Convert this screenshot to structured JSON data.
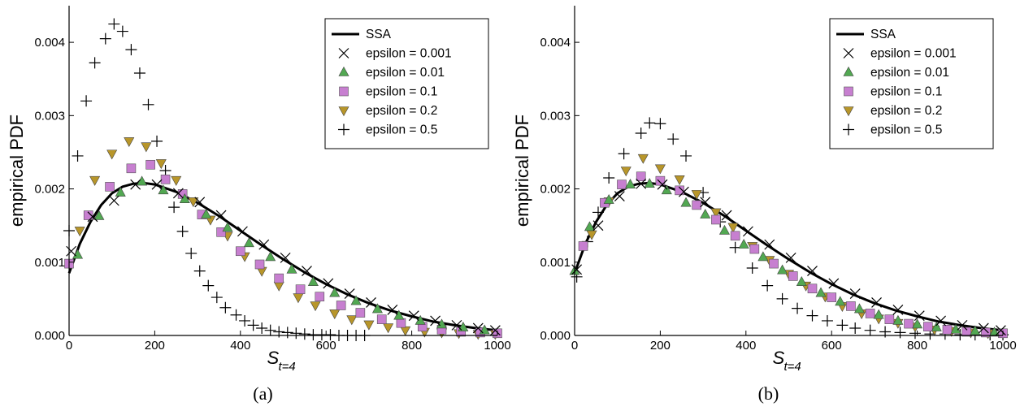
{
  "chart_data": [
    {
      "panel_label": "(a)",
      "type": "scatter",
      "xlabel_base": "S",
      "xlabel_sub": "t=4",
      "ylabel": "empirical PDF",
      "xlim": [
        0,
        1000
      ],
      "ylim": [
        0,
        0.0045
      ],
      "xticks": [
        0,
        200,
        400,
        600,
        800,
        1000
      ],
      "xtick_labels": [
        "0",
        "200",
        "400",
        "600",
        "800",
        "1000"
      ],
      "yticks": [
        0,
        0.001,
        0.002,
        0.003,
        0.004
      ],
      "ytick_labels": [
        "0.000",
        "0.001",
        "0.002",
        "0.003",
        "0.004"
      ],
      "legend_position": "top-right",
      "grid": false,
      "series": [
        {
          "name": "SSA",
          "kind": "line",
          "color": "#000000",
          "x": [
            0,
            25,
            50,
            75,
            100,
            125,
            150,
            175,
            200,
            250,
            300,
            350,
            400,
            450,
            500,
            550,
            600,
            650,
            700,
            750,
            800,
            850,
            900,
            950,
            1000
          ],
          "y": [
            0.00085,
            0.00125,
            0.00155,
            0.00178,
            0.00194,
            0.00203,
            0.00207,
            0.00208,
            0.00206,
            0.00196,
            0.00181,
            0.00163,
            0.00143,
            0.00123,
            0.00104,
            0.00086,
            0.0007,
            0.00056,
            0.00044,
            0.00034,
            0.00026,
            0.00019,
            0.00014,
            0.0001,
            7e-05
          ]
        },
        {
          "name": "epsilon = 0.001",
          "kind": "x",
          "color": "#000000",
          "x": [
            5,
            55,
            105,
            155,
            205,
            255,
            305,
            355,
            405,
            455,
            505,
            555,
            605,
            655,
            705,
            755,
            805,
            855,
            905,
            955,
            995
          ],
          "y": [
            0.00115,
            0.00162,
            0.00184,
            0.00206,
            0.00206,
            0.00194,
            0.00182,
            0.00164,
            0.00142,
            0.00124,
            0.00106,
            0.00088,
            0.00071,
            0.00057,
            0.00045,
            0.00035,
            0.00027,
            0.0002,
            0.00014,
            0.0001,
            7e-05
          ]
        },
        {
          "name": "epsilon = 0.01",
          "kind": "triangle-up",
          "color": "#52a852",
          "x": [
            20,
            70,
            120,
            170,
            220,
            270,
            320,
            370,
            420,
            470,
            520,
            570,
            620,
            670,
            720,
            770,
            820,
            870,
            920,
            970
          ],
          "y": [
            0.0011,
            0.00163,
            0.00195,
            0.0021,
            0.00198,
            0.00186,
            0.00165,
            0.00147,
            0.00126,
            0.00107,
            0.0009,
            0.00073,
            0.00058,
            0.00047,
            0.00036,
            0.00027,
            0.0002,
            0.00015,
            0.00011,
            7e-05
          ]
        },
        {
          "name": "epsilon = 0.1",
          "kind": "square",
          "color": "#c77fd0",
          "x": [
            0,
            45,
            95,
            145,
            190,
            225,
            265,
            310,
            355,
            400,
            445,
            490,
            540,
            585,
            635,
            680,
            730,
            775,
            825,
            870,
            915,
            960,
            1000
          ],
          "y": [
            0.00098,
            0.00164,
            0.00203,
            0.00228,
            0.00233,
            0.00213,
            0.00193,
            0.00165,
            0.00141,
            0.00115,
            0.00097,
            0.00078,
            0.00063,
            0.00053,
            0.00041,
            0.00031,
            0.00022,
            0.00017,
            0.00012,
            8e-05,
            5e-05,
            4e-05,
            3e-05
          ]
        },
        {
          "name": "epsilon = 0.2",
          "kind": "triangle-down",
          "color": "#b8962a",
          "x": [
            25,
            60,
            100,
            140,
            180,
            215,
            250,
            290,
            330,
            370,
            410,
            450,
            490,
            535,
            575,
            620,
            660,
            700,
            745,
            785,
            830,
            870,
            910,
            955,
            995
          ],
          "y": [
            0.00143,
            0.00212,
            0.00248,
            0.00265,
            0.00258,
            0.00235,
            0.00212,
            0.00183,
            0.00158,
            0.00136,
            0.00108,
            0.00088,
            0.00068,
            0.00052,
            0.00041,
            0.0003,
            0.00022,
            0.00015,
            0.00011,
            7e-05,
            5e-05,
            4e-05,
            3e-05,
            2e-05,
            2e-05
          ]
        },
        {
          "name": "epsilon = 0.5",
          "kind": "plus",
          "color": "#000000",
          "x": [
            0,
            20,
            40,
            60,
            85,
            105,
            125,
            145,
            165,
            185,
            205,
            225,
            245,
            265,
            285,
            305,
            325,
            345,
            365,
            390,
            410,
            430,
            450,
            470,
            490,
            510,
            530,
            550,
            570,
            590,
            610,
            630,
            650,
            670,
            690
          ],
          "y": [
            0.00143,
            0.00245,
            0.0032,
            0.00372,
            0.00405,
            0.00425,
            0.00415,
            0.0039,
            0.00358,
            0.00315,
            0.00265,
            0.00225,
            0.00175,
            0.00142,
            0.00112,
            0.00088,
            0.00068,
            0.00052,
            0.00038,
            0.00028,
            0.0002,
            0.00014,
            0.0001,
            7e-05,
            5e-05,
            4e-05,
            3e-05,
            2e-05,
            1e-05,
            1e-05,
            1e-05,
            0,
            0,
            0,
            0
          ]
        }
      ]
    },
    {
      "panel_label": "(b)",
      "type": "scatter",
      "xlabel_base": "S",
      "xlabel_sub": "t=4",
      "ylabel": "empirical PDF",
      "xlim": [
        0,
        1000
      ],
      "ylim": [
        0,
        0.0045
      ],
      "xticks": [
        0,
        200,
        400,
        600,
        800,
        1000
      ],
      "xtick_labels": [
        "0",
        "200",
        "400",
        "600",
        "800",
        "1000"
      ],
      "yticks": [
        0,
        0.001,
        0.002,
        0.003,
        0.004
      ],
      "ytick_labels": [
        "0.000",
        "0.001",
        "0.002",
        "0.003",
        "0.004"
      ],
      "legend_position": "top-right",
      "grid": false,
      "series": [
        {
          "name": "SSA",
          "kind": "line",
          "color": "#000000",
          "x": [
            0,
            25,
            50,
            75,
            100,
            125,
            150,
            175,
            200,
            250,
            300,
            350,
            400,
            450,
            500,
            550,
            600,
            650,
            700,
            750,
            800,
            850,
            900,
            950,
            1000
          ],
          "y": [
            0.00085,
            0.00125,
            0.00155,
            0.00178,
            0.00194,
            0.00203,
            0.00207,
            0.00208,
            0.00206,
            0.00196,
            0.00181,
            0.00163,
            0.00143,
            0.00123,
            0.00104,
            0.00086,
            0.0007,
            0.00056,
            0.00044,
            0.00034,
            0.00026,
            0.00019,
            0.00014,
            0.0001,
            7e-05
          ]
        },
        {
          "name": "epsilon = 0.001",
          "kind": "x",
          "color": "#000000",
          "x": [
            5,
            55,
            105,
            155,
            205,
            255,
            305,
            355,
            405,
            455,
            505,
            555,
            605,
            655,
            705,
            755,
            805,
            855,
            905,
            955,
            995
          ],
          "y": [
            0.0009,
            0.0015,
            0.0019,
            0.00207,
            0.00206,
            0.00196,
            0.00182,
            0.00164,
            0.00142,
            0.00124,
            0.00106,
            0.00088,
            0.00071,
            0.00057,
            0.00045,
            0.00035,
            0.00027,
            0.0002,
            0.00014,
            0.0001,
            7e-05
          ]
        },
        {
          "name": "epsilon = 0.01",
          "kind": "triangle-up",
          "color": "#52a852",
          "x": [
            0,
            35,
            80,
            130,
            175,
            215,
            260,
            305,
            350,
            395,
            440,
            485,
            530,
            575,
            620,
            665,
            710,
            755,
            800,
            845,
            890,
            935,
            980
          ],
          "y": [
            0.00088,
            0.00148,
            0.00185,
            0.00206,
            0.00207,
            0.00198,
            0.00181,
            0.00165,
            0.00143,
            0.00124,
            0.00107,
            0.00089,
            0.00073,
            0.00058,
            0.00046,
            0.00036,
            0.00028,
            0.0002,
            0.00015,
            0.00011,
            8e-05,
            6e-05,
            4e-05
          ]
        },
        {
          "name": "epsilon = 0.1",
          "kind": "square",
          "color": "#c77fd0",
          "x": [
            20,
            70,
            110,
            155,
            200,
            245,
            285,
            330,
            375,
            420,
            465,
            510,
            555,
            600,
            645,
            690,
            735,
            780,
            825,
            870,
            915,
            960,
            1000
          ],
          "y": [
            0.00122,
            0.00181,
            0.00206,
            0.00217,
            0.00211,
            0.00198,
            0.00178,
            0.00158,
            0.00136,
            0.00118,
            0.00098,
            0.00081,
            0.00064,
            0.00052,
            0.0004,
            0.0003,
            0.00022,
            0.00016,
            0.00012,
            8e-05,
            5e-05,
            4e-05,
            3e-05
          ]
        },
        {
          "name": "epsilon = 0.2",
          "kind": "triangle-down",
          "color": "#b8962a",
          "x": [
            40,
            80,
            120,
            160,
            200,
            245,
            285,
            330,
            370,
            415,
            455,
            500,
            540,
            585,
            625,
            670,
            710,
            755,
            795,
            840,
            880,
            925,
            965
          ],
          "y": [
            0.00138,
            0.00183,
            0.00225,
            0.00242,
            0.00228,
            0.00213,
            0.00193,
            0.00168,
            0.00148,
            0.00122,
            0.00103,
            0.00084,
            0.00068,
            0.00053,
            0.0004,
            0.0003,
            0.00023,
            0.00017,
            0.00012,
            8e-05,
            6e-05,
            4e-05,
            3e-05
          ]
        },
        {
          "name": "epsilon = 0.5",
          "kind": "plus",
          "color": "#000000",
          "x": [
            5,
            30,
            55,
            80,
            115,
            155,
            175,
            200,
            230,
            260,
            300,
            340,
            375,
            415,
            450,
            485,
            520,
            555,
            590,
            625,
            655,
            690,
            725,
            760,
            795,
            830,
            865,
            900,
            935,
            970,
            1000
          ],
          "y": [
            0.0008,
            0.00128,
            0.00168,
            0.00215,
            0.00248,
            0.00276,
            0.0029,
            0.00289,
            0.00268,
            0.00245,
            0.00195,
            0.00155,
            0.0012,
            0.00092,
            0.00068,
            0.0005,
            0.00037,
            0.00027,
            0.0002,
            0.00014,
            0.0001,
            7e-05,
            5e-05,
            4e-05,
            3e-05,
            2e-05,
            2e-05,
            1e-05,
            1e-05,
            1e-05,
            1e-05
          ]
        }
      ]
    }
  ]
}
